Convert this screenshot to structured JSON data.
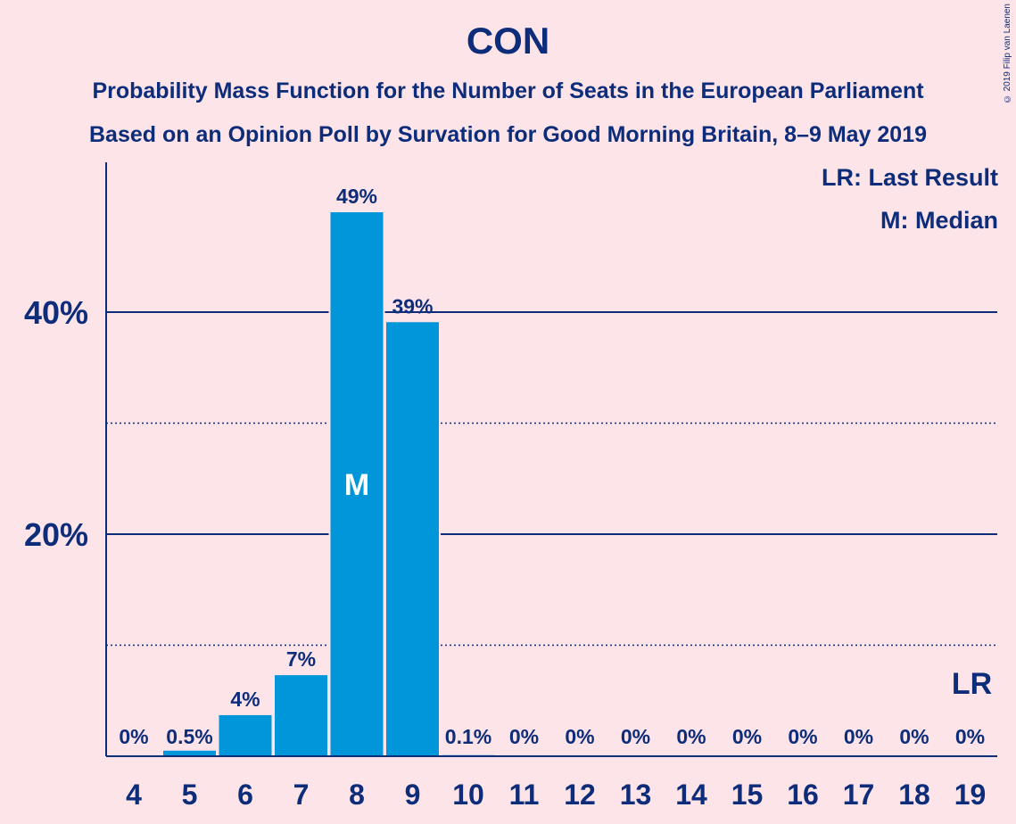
{
  "title": "CON",
  "subtitle_1": "Probability Mass Function for the Number of Seats in the European Parliament",
  "subtitle_2": "Based on an Opinion Poll by Survation for Good Morning Britain, 8–9 May 2019",
  "copyright": "© 2019 Filip van Laenen",
  "legend": {
    "last_result": "LR: Last Result",
    "median": "M: Median"
  },
  "colors": {
    "bar": "#0096d9",
    "axis": "#0d2c7a",
    "background": "#fde4e8"
  },
  "chart_data": {
    "type": "bar",
    "categories": [
      "4",
      "5",
      "6",
      "7",
      "8",
      "9",
      "10",
      "11",
      "12",
      "13",
      "14",
      "15",
      "16",
      "17",
      "18",
      "19"
    ],
    "values": [
      0,
      0.5,
      3.7,
      7.3,
      49,
      39.1,
      0.1,
      0,
      0,
      0,
      0,
      0,
      0,
      0,
      0,
      0
    ],
    "value_labels": [
      "0%",
      "0.5%",
      "4%",
      "7%",
      "49%",
      "39%",
      "0.1%",
      "0%",
      "0%",
      "0%",
      "0%",
      "0%",
      "0%",
      "0%",
      "0%",
      "0%"
    ],
    "y_ticks": [
      {
        "value": 20,
        "label": "20%"
      },
      {
        "value": 40,
        "label": "40%"
      }
    ],
    "minor_gridlines": [
      10,
      30
    ],
    "ylim": [
      0,
      53.5
    ],
    "median_category": "8",
    "median_marker": "M",
    "last_result_category": "19",
    "last_result_marker": "LR",
    "title": "CON",
    "xlabel": "",
    "ylabel": ""
  }
}
